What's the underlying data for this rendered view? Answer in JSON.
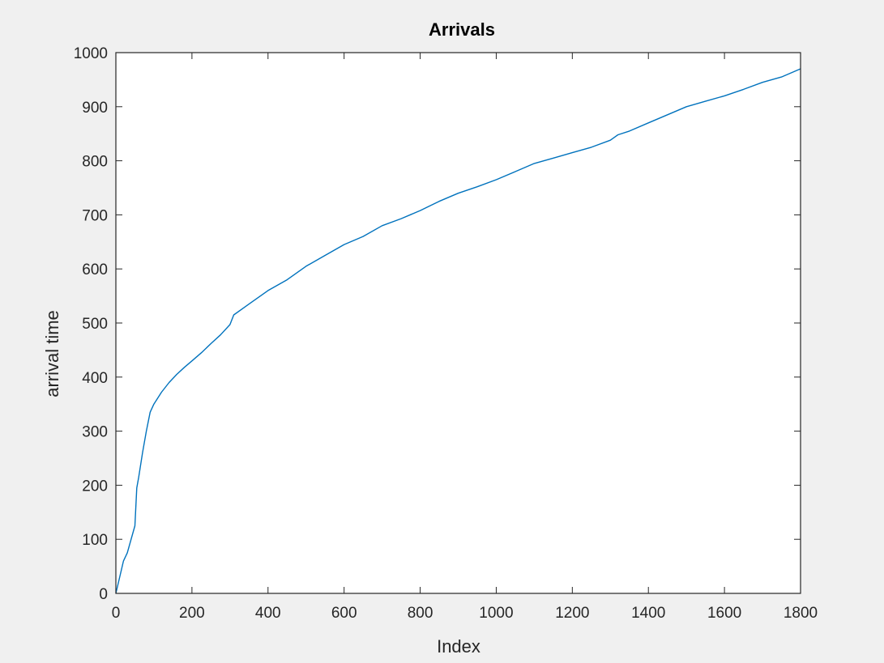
{
  "chart_data": {
    "type": "line",
    "title": "Arrivals",
    "xlabel": "Index",
    "ylabel": "arrival time",
    "xlim": [
      0,
      1800
    ],
    "ylim": [
      0,
      1000
    ],
    "xticks": [
      "0",
      "200",
      "400",
      "600",
      "800",
      "1000",
      "1200",
      "1400",
      "1600",
      "1800"
    ],
    "yticks": [
      "0",
      "100",
      "200",
      "300",
      "400",
      "500",
      "600",
      "700",
      "800",
      "900",
      "1000"
    ],
    "grid": false,
    "legend": false,
    "colors": {
      "line": "#0072bd",
      "axes": "#262626",
      "background": "#ffffff",
      "figure": "#f0f0f0"
    },
    "series": [
      {
        "x": [
          0,
          10,
          20,
          30,
          40,
          50,
          55,
          60,
          70,
          80,
          90,
          100,
          120,
          140,
          160,
          180,
          200,
          225,
          250,
          275,
          300,
          310,
          350,
          400,
          450,
          500,
          550,
          600,
          650,
          700,
          750,
          800,
          850,
          900,
          950,
          1000,
          1050,
          1100,
          1150,
          1200,
          1250,
          1300,
          1320,
          1350,
          1400,
          1450,
          1500,
          1550,
          1600,
          1650,
          1700,
          1750,
          1800
        ],
        "y": [
          0,
          30,
          60,
          75,
          100,
          125,
          195,
          215,
          260,
          300,
          335,
          350,
          372,
          390,
          405,
          418,
          430,
          445,
          462,
          478,
          497,
          515,
          535,
          560,
          580,
          605,
          625,
          645,
          660,
          680,
          693,
          708,
          725,
          740,
          752,
          765,
          780,
          795,
          805,
          815,
          825,
          838,
          848,
          855,
          870,
          885,
          900,
          910,
          920,
          932,
          945,
          955,
          970
        ]
      }
    ]
  }
}
